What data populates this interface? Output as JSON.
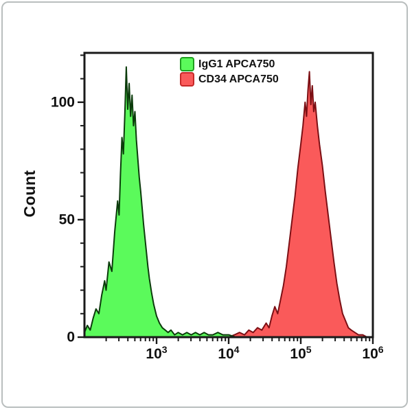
{
  "chart_data": {
    "type": "area",
    "subtype": "flow-cytometry-histogram",
    "title": "",
    "xlabel": "",
    "ylabel": "Count",
    "x_scale": "log10",
    "x_log_range": [
      2,
      6
    ],
    "ylim": [
      0,
      121
    ],
    "y_major_ticks": [
      0,
      50,
      100
    ],
    "y_minor_tick_step": 10,
    "x_tick_exponents": [
      3,
      4,
      5,
      6
    ],
    "x_tick_base": "10",
    "grid": "off",
    "legend_position": "top-center-inside",
    "frame": "full-box",
    "axis_color": "#1a1a1a",
    "series": [
      {
        "name": "CD34 APCA750",
        "fill": "#fa5a5a",
        "stroke": "#7c0f14",
        "swatch_border": "#c62828",
        "points_log10x_count": [
          [
            2.0,
            0
          ],
          [
            4.0,
            0
          ],
          [
            4.08,
            1
          ],
          [
            4.15,
            2
          ],
          [
            4.22,
            1
          ],
          [
            4.28,
            3
          ],
          [
            4.34,
            2
          ],
          [
            4.4,
            4
          ],
          [
            4.46,
            3
          ],
          [
            4.52,
            6
          ],
          [
            4.56,
            4
          ],
          [
            4.6,
            9
          ],
          [
            4.64,
            13
          ],
          [
            4.68,
            10
          ],
          [
            4.72,
            16
          ],
          [
            4.76,
            22
          ],
          [
            4.8,
            30
          ],
          [
            4.84,
            40
          ],
          [
            4.88,
            50
          ],
          [
            4.92,
            60
          ],
          [
            4.96,
            72
          ],
          [
            5.0,
            82
          ],
          [
            5.03,
            90
          ],
          [
            5.06,
            100
          ],
          [
            5.08,
            94
          ],
          [
            5.1,
            105
          ],
          [
            5.12,
            113
          ],
          [
            5.14,
            99
          ],
          [
            5.16,
            107
          ],
          [
            5.18,
            96
          ],
          [
            5.2,
            100
          ],
          [
            5.23,
            90
          ],
          [
            5.26,
            82
          ],
          [
            5.3,
            73
          ],
          [
            5.34,
            62
          ],
          [
            5.38,
            52
          ],
          [
            5.42,
            42
          ],
          [
            5.46,
            32
          ],
          [
            5.5,
            23
          ],
          [
            5.54,
            16
          ],
          [
            5.58,
            10
          ],
          [
            5.62,
            7
          ],
          [
            5.66,
            4
          ],
          [
            5.7,
            3
          ],
          [
            5.75,
            2
          ],
          [
            5.8,
            1
          ],
          [
            5.86,
            1
          ],
          [
            5.92,
            0
          ],
          [
            6.0,
            0
          ]
        ]
      },
      {
        "name": "IgG1 APCA750",
        "fill": "#5bfa5b",
        "stroke": "#0b3b0b",
        "swatch_border": "#1e9e1e",
        "points_log10x_count": [
          [
            2.0,
            2
          ],
          [
            2.04,
            5
          ],
          [
            2.08,
            3
          ],
          [
            2.12,
            8
          ],
          [
            2.16,
            12
          ],
          [
            2.2,
            10
          ],
          [
            2.24,
            18
          ],
          [
            2.28,
            24
          ],
          [
            2.3,
            20
          ],
          [
            2.34,
            32
          ],
          [
            2.38,
            28
          ],
          [
            2.42,
            45
          ],
          [
            2.46,
            58
          ],
          [
            2.48,
            52
          ],
          [
            2.5,
            70
          ],
          [
            2.52,
            85
          ],
          [
            2.54,
            78
          ],
          [
            2.56,
            95
          ],
          [
            2.58,
            115
          ],
          [
            2.6,
            97
          ],
          [
            2.62,
            108
          ],
          [
            2.64,
            94
          ],
          [
            2.66,
            103
          ],
          [
            2.68,
            90
          ],
          [
            2.7,
            96
          ],
          [
            2.72,
            84
          ],
          [
            2.74,
            76
          ],
          [
            2.76,
            68
          ],
          [
            2.78,
            62
          ],
          [
            2.8,
            55
          ],
          [
            2.82,
            48
          ],
          [
            2.84,
            42
          ],
          [
            2.86,
            36
          ],
          [
            2.88,
            30
          ],
          [
            2.9,
            25
          ],
          [
            2.93,
            19
          ],
          [
            2.96,
            14
          ],
          [
            3.0,
            9
          ],
          [
            3.04,
            6
          ],
          [
            3.08,
            4
          ],
          [
            3.12,
            3
          ],
          [
            3.16,
            2
          ],
          [
            3.2,
            3
          ],
          [
            3.25,
            1
          ],
          [
            3.3,
            2
          ],
          [
            3.36,
            1
          ],
          [
            3.42,
            2
          ],
          [
            3.48,
            1
          ],
          [
            3.54,
            2
          ],
          [
            3.6,
            1
          ],
          [
            3.66,
            2
          ],
          [
            3.72,
            1
          ],
          [
            3.78,
            1
          ],
          [
            3.85,
            2
          ],
          [
            3.92,
            1
          ],
          [
            4.0,
            1
          ],
          [
            4.1,
            0
          ],
          [
            6.0,
            0
          ]
        ]
      }
    ],
    "legend": [
      {
        "label": "IgG1 APCA750"
      },
      {
        "label": "CD34 APCA750"
      }
    ]
  }
}
